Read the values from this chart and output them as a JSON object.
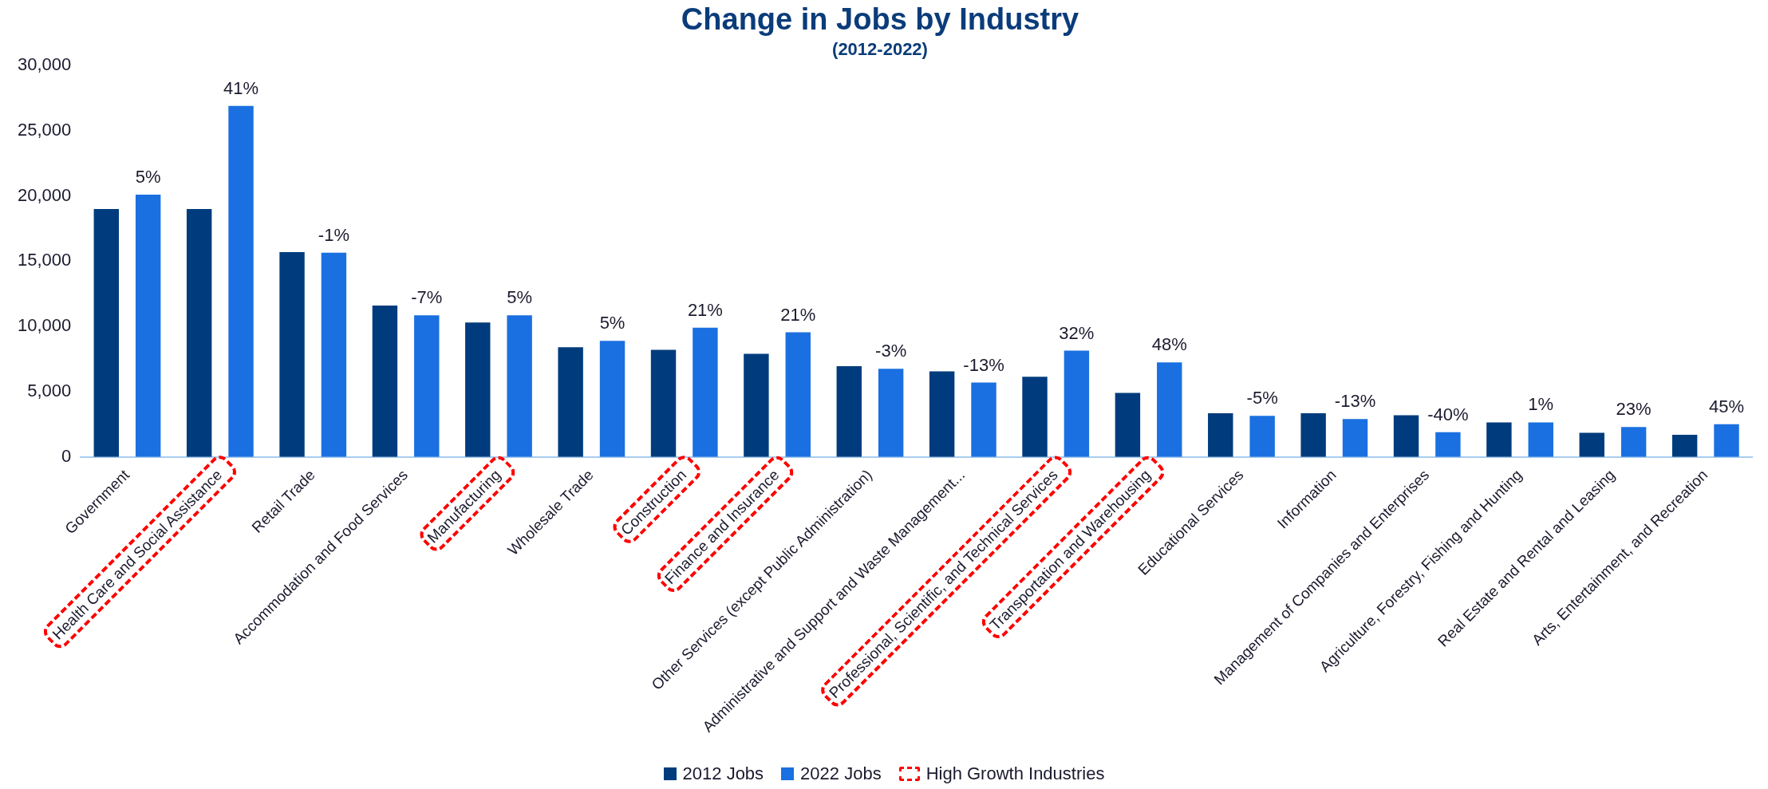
{
  "chart_data": {
    "type": "bar",
    "title": "Change in Jobs by Industry",
    "subtitle": "(2012-2022)",
    "categories": [
      "Government",
      "Health Care and Social Assistance",
      "Retail Trade",
      "Accommodation and Food Services",
      "Manufacturing",
      "Wholesale Trade",
      "Construction",
      "Finance and Insurance",
      "Other Services (except Public Administration)",
      "Administrative and Support and Waste Management...",
      "Professional, Scientific, and Technical Services",
      "Transportation and Warehousing",
      "Educational Services",
      "Information",
      "Management of Companies and Enterprises",
      "Agriculture, Forestry, Fishing and Hunting",
      "Real Estate and Rental and Leasing",
      "Arts, Entertainment, and Recreation"
    ],
    "series": [
      {
        "name": "2012 Jobs",
        "color": "#003c7d",
        "values": [
          19000,
          19000,
          15700,
          11600,
          10300,
          8400,
          8200,
          7900,
          6950,
          6550,
          6150,
          4900,
          3350,
          3350,
          3200,
          2650,
          1850,
          1700
        ]
      },
      {
        "name": "2022 Jobs",
        "color": "#1a70e0",
        "values": [
          20100,
          26900,
          15650,
          10850,
          10850,
          8900,
          9900,
          9550,
          6750,
          5700,
          8150,
          7250,
          3150,
          2900,
          1900,
          2650,
          2300,
          2500
        ]
      }
    ],
    "ylim": [
      0,
      30000
    ],
    "yticks": [
      {
        "value": 0,
        "label": "0"
      },
      {
        "value": 5000,
        "label": "5,000"
      },
      {
        "value": 10000,
        "label": "10,000"
      },
      {
        "value": 15000,
        "label": "15,000"
      },
      {
        "value": 20000,
        "label": "20,000"
      },
      {
        "value": 25000,
        "label": "25,000"
      },
      {
        "value": 30000,
        "label": "30,000"
      }
    ],
    "grid": false,
    "legend": "bottom",
    "annotations": [
      "5%",
      "41%",
      "-1%",
      "-7%",
      "5%",
      "5%",
      "21%",
      "21%",
      "-3%",
      "-13%",
      "32%",
      "48%",
      "-5%",
      "-13%",
      "-40%",
      "1%",
      "23%",
      "45%",
      "High Growth Industries"
    ]
  }
}
